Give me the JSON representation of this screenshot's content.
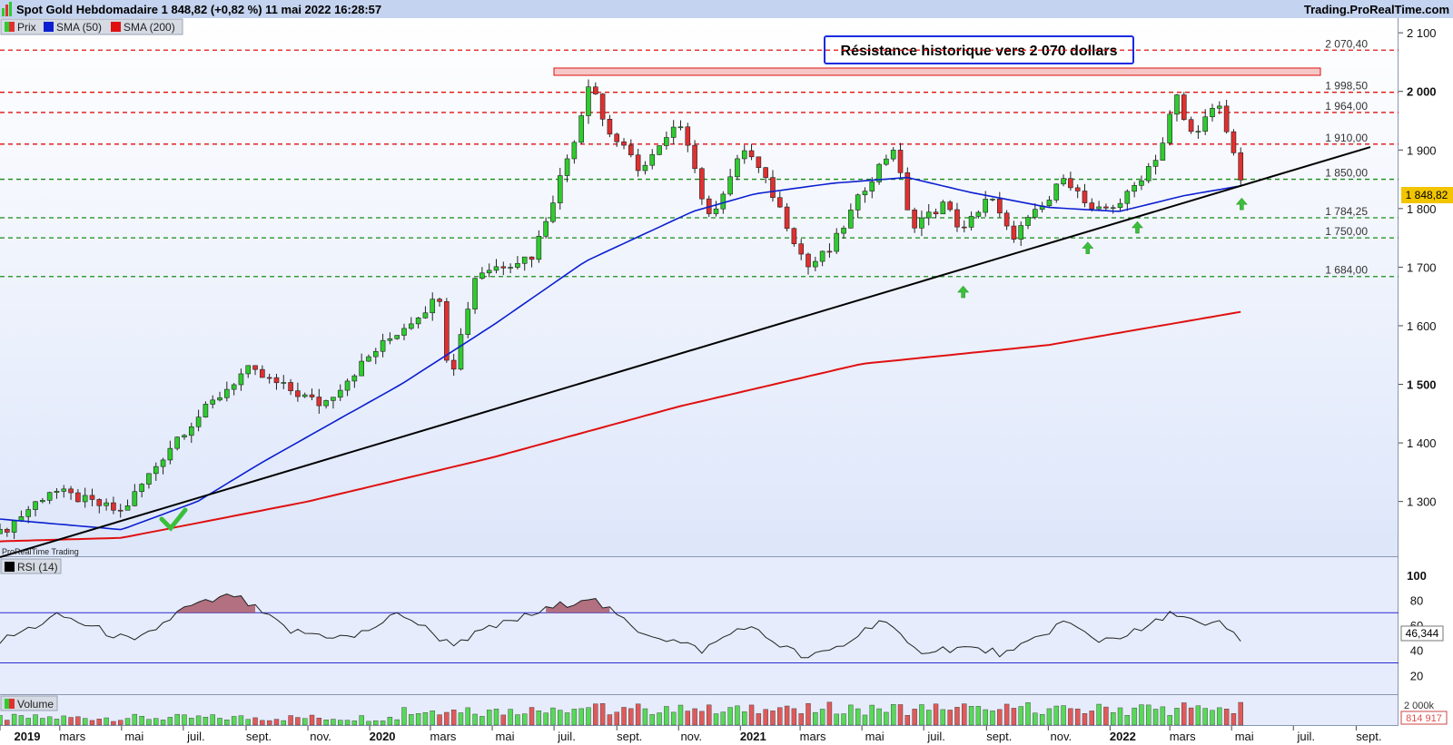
{
  "header": {
    "title": "Spot  Gold Hebdomadaire 1 848,82 (+0,82 %) 11 mai 2022 16:28:57",
    "brand": "Trading.ProRealTime.com",
    "watermark": "ProRealTime Trading"
  },
  "legend": {
    "items": [
      {
        "label": "Prix",
        "color": "#2e9e2e"
      },
      {
        "label": "SMA (50)",
        "color": "#0b1fd0"
      },
      {
        "label": "SMA (200)",
        "color": "#e01010"
      }
    ]
  },
  "annotation": "Résistance historique vers 2 070 dollars",
  "price_badge": "1 848,82",
  "rsi": {
    "label": "RSI (14)",
    "value_badge": "46,344",
    "upper": 70,
    "lower": 30
  },
  "volume": {
    "label": "Volume",
    "tick": "2 000k",
    "value_badge": "814 917"
  },
  "x_ticks": [
    "2019",
    "mars",
    "mai",
    "juil.",
    "sept.",
    "nov.",
    "2020",
    "mars",
    "mai",
    "juil.",
    "sept.",
    "nov.",
    "2021",
    "mars",
    "mai",
    "juil.",
    "sept.",
    "nov.",
    "2022",
    "mars",
    "mai",
    "juil.",
    "sept."
  ],
  "colors": {
    "up": "#2ecc2e",
    "down": "#e03030",
    "sma50": "#0b1fd0",
    "sma200": "#e01010",
    "trend": "#000000",
    "resistance": "#e01010",
    "support": "#1a8a1a",
    "panel_bg": "#e6ecfb"
  },
  "chart_data": {
    "type": "candlestick",
    "title": "Spot  Gold Hebdomadaire",
    "y_ticks": [
      1300,
      1400,
      1500,
      1600,
      1700,
      1800,
      1900,
      2000,
      2100
    ],
    "ylim": [
      1205,
      2125
    ],
    "levels": [
      {
        "value": 2070.4,
        "label": "2 070,40",
        "style": "resistance"
      },
      {
        "value": 1998.5,
        "label": "1 998,50",
        "style": "resistance"
      },
      {
        "value": 1964.0,
        "label": "1 964,00",
        "style": "resistance"
      },
      {
        "value": 1910.0,
        "label": "1 910,00",
        "style": "resistance"
      },
      {
        "value": 1850.0,
        "label": "1 850,00",
        "style": "support"
      },
      {
        "value": 1784.25,
        "label": "1 784,25",
        "style": "support"
      },
      {
        "value": 1750.0,
        "label": "1 750,00",
        "style": "support"
      },
      {
        "value": 1684.0,
        "label": "1 684,00",
        "style": "support"
      }
    ],
    "close_anchors": [
      [
        "2019-01-01",
        1245
      ],
      [
        "2019-02-20",
        1320
      ],
      [
        "2019-05-01",
        1282
      ],
      [
        "2019-06-25",
        1410
      ],
      [
        "2019-09-01",
        1525
      ],
      [
        "2019-11-15",
        1465
      ],
      [
        "2020-01-05",
        1555
      ],
      [
        "2020-03-10",
        1650
      ],
      [
        "2020-03-20",
        1505
      ],
      [
        "2020-04-15",
        1690
      ],
      [
        "2020-06-10",
        1720
      ],
      [
        "2020-07-25",
        1940
      ],
      [
        "2020-08-06",
        2030
      ],
      [
        "2020-08-20",
        1940
      ],
      [
        "2020-09-25",
        1865
      ],
      [
        "2020-11-05",
        1950
      ],
      [
        "2020-11-30",
        1780
      ],
      [
        "2021-01-06",
        1905
      ],
      [
        "2021-02-05",
        1815
      ],
      [
        "2021-03-08",
        1700
      ],
      [
        "2021-03-31",
        1730
      ],
      [
        "2021-05-05",
        1840
      ],
      [
        "2021-06-01",
        1905
      ],
      [
        "2021-06-20",
        1765
      ],
      [
        "2021-07-20",
        1810
      ],
      [
        "2021-08-09",
        1760
      ],
      [
        "2021-09-03",
        1825
      ],
      [
        "2021-09-25",
        1750
      ],
      [
        "2021-11-05",
        1820
      ],
      [
        "2021-11-16",
        1860
      ],
      [
        "2021-12-15",
        1790
      ],
      [
        "2022-01-15",
        1815
      ],
      [
        "2022-02-20",
        1900
      ],
      [
        "2022-03-07",
        1995
      ],
      [
        "2022-03-20",
        1925
      ],
      [
        "2022-04-18",
        1975
      ],
      [
        "2022-05-11",
        1849
      ]
    ],
    "sma50_anchors": [
      [
        "2019-01-01",
        1270
      ],
      [
        "2019-05-01",
        1252
      ],
      [
        "2019-07-15",
        1300
      ],
      [
        "2019-09-15",
        1365
      ],
      [
        "2019-12-01",
        1440
      ],
      [
        "2020-02-01",
        1500
      ],
      [
        "2020-05-01",
        1600
      ],
      [
        "2020-08-01",
        1710
      ],
      [
        "2020-11-15",
        1795
      ],
      [
        "2021-01-15",
        1825
      ],
      [
        "2021-04-01",
        1843
      ],
      [
        "2021-06-15",
        1853
      ],
      [
        "2021-08-15",
        1828
      ],
      [
        "2021-11-01",
        1802
      ],
      [
        "2022-01-10",
        1795
      ],
      [
        "2022-03-15",
        1822
      ],
      [
        "2022-05-11",
        1839
      ]
    ],
    "sma200_anchors": [
      [
        "2019-01-01",
        1232
      ],
      [
        "2019-05-01",
        1238
      ],
      [
        "2019-11-01",
        1300
      ],
      [
        "2020-05-01",
        1375
      ],
      [
        "2020-11-01",
        1462
      ],
      [
        "2021-05-01",
        1535
      ],
      [
        "2021-11-01",
        1567
      ],
      [
        "2022-05-11",
        1624
      ]
    ],
    "trendline": [
      [
        "2019-01-01",
        1205
      ],
      [
        "2022-09-15",
        1905
      ]
    ],
    "rsi_anchors": [
      [
        "2019-01-01",
        47
      ],
      [
        "2019-03-01",
        68
      ],
      [
        "2019-05-15",
        46
      ],
      [
        "2019-07-01",
        73
      ],
      [
        "2019-08-20",
        84
      ],
      [
        "2019-10-15",
        55
      ],
      [
        "2019-12-15",
        50
      ],
      [
        "2020-02-01",
        70
      ],
      [
        "2020-03-20",
        45
      ],
      [
        "2020-05-15",
        62
      ],
      [
        "2020-08-04",
        83
      ],
      [
        "2020-09-20",
        57
      ],
      [
        "2020-11-25",
        40
      ],
      [
        "2021-01-05",
        60
      ],
      [
        "2021-03-08",
        33
      ],
      [
        "2021-04-15",
        45
      ],
      [
        "2021-05-20",
        66
      ],
      [
        "2021-06-20",
        40
      ],
      [
        "2021-08-10",
        42
      ],
      [
        "2021-09-25",
        37
      ],
      [
        "2021-11-16",
        63
      ],
      [
        "2021-12-20",
        48
      ],
      [
        "2022-01-30",
        55
      ],
      [
        "2022-03-07",
        71
      ],
      [
        "2022-04-05",
        58
      ],
      [
        "2022-04-20",
        62
      ],
      [
        "2022-05-11",
        46
      ]
    ],
    "rsi_y_ticks": [
      20,
      40,
      60,
      80,
      100
    ]
  }
}
